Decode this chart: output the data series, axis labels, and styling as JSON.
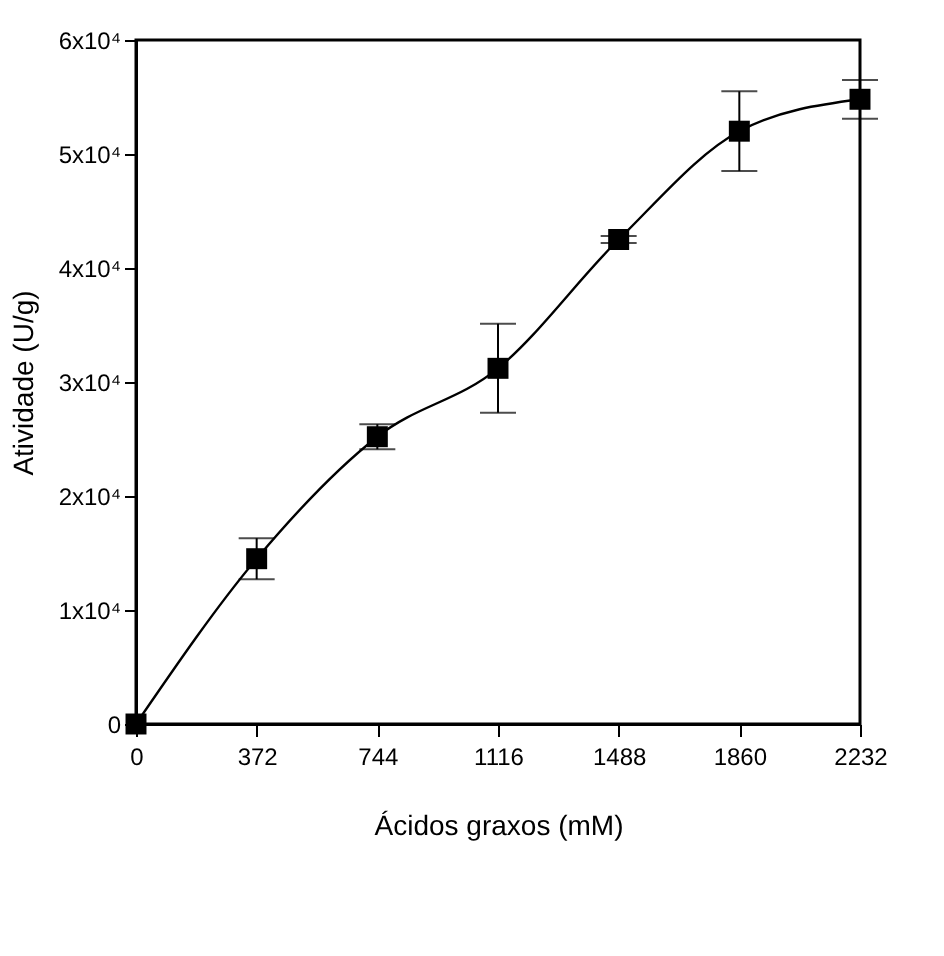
{
  "chart_data": {
    "type": "line",
    "xlabel": "Ácidos graxos (mM)",
    "ylabel": "Atividade (U/g)",
    "x": [
      0,
      372,
      744,
      1116,
      1488,
      1860,
      2232
    ],
    "series": [
      {
        "color": "#000000",
        "values": [
          0,
          14500,
          25200,
          31200,
          42500,
          52000,
          54800
        ],
        "errors": [
          null,
          1800,
          1100,
          3900,
          300,
          3500,
          1700
        ]
      }
    ],
    "xlim": [
      0,
      2232
    ],
    "xticks": [
      0,
      372,
      744,
      1116,
      1488,
      1860,
      2232
    ],
    "ylim": [
      0,
      60000
    ],
    "yticks": [
      {
        "value": 0,
        "label": "0"
      },
      {
        "value": 10000,
        "label": "1x10⁴"
      },
      {
        "value": 20000,
        "label": "2x10⁴"
      },
      {
        "value": 30000,
        "label": "3x10⁴"
      },
      {
        "value": 40000,
        "label": "4x10⁴"
      },
      {
        "value": 50000,
        "label": "5x10⁴"
      },
      {
        "value": 60000,
        "label": "6x10⁴"
      }
    ],
    "marker": "square",
    "line_style": "solid",
    "grid": false
  }
}
